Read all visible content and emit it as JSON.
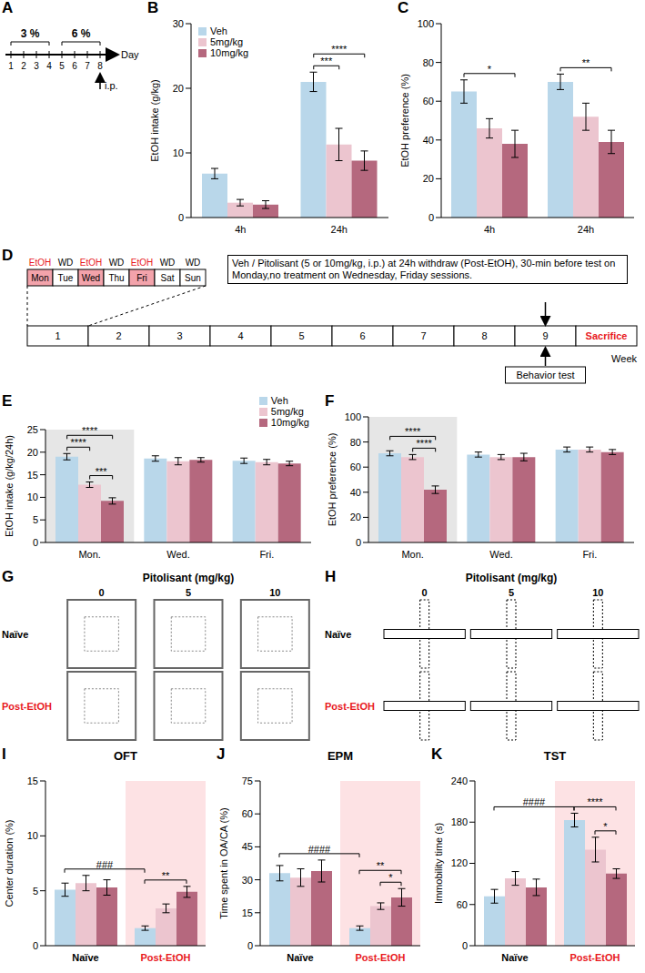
{
  "panel_A": {
    "panel": "A",
    "segments": [
      {
        "label": "3 %",
        "from": 1,
        "to": 4
      },
      {
        "label": "6 %",
        "from": 5,
        "to": 8
      }
    ],
    "days": [
      1,
      2,
      3,
      4,
      5,
      6,
      7,
      8
    ],
    "axis_label": "Day",
    "injection": {
      "day": 8,
      "label": "i.p."
    }
  },
  "panel_D": {
    "panel": "D",
    "week_days": [
      {
        "day": "Mon",
        "session": "EtOH",
        "color": "#f3a3ab"
      },
      {
        "day": "Tue",
        "session": "WD"
      },
      {
        "day": "Wed",
        "session": "EtOH",
        "color": "#f3a3ab"
      },
      {
        "day": "Thu",
        "session": "WD"
      },
      {
        "day": "Fri",
        "session": "EtOH",
        "color": "#f3a3ab"
      },
      {
        "day": "Sat",
        "session": "WD"
      },
      {
        "day": "Sun",
        "session": "WD"
      }
    ],
    "weeks": [
      1,
      2,
      3,
      4,
      5,
      6,
      7,
      8,
      9
    ],
    "final": {
      "label": "Sacrifice",
      "color": "#e8191e"
    },
    "note": "Veh / Pitolisant (5 or 10mg/kg, i.p.) at 24h withdraw (Post-EtOH), 30-min before test on Monday,no treatment on Wednesday, Friday sessions.",
    "behavior": "Behavior test",
    "axis_label": "Week"
  },
  "panel_G": {
    "panel": "G",
    "title": "Pitolisant (mg/kg)",
    "doses": [
      0,
      5,
      10
    ],
    "rows": [
      "Naïve",
      "Post-EtOH"
    ],
    "colors": [
      "#000000",
      "#e8191e"
    ]
  },
  "panel_H": {
    "panel": "H",
    "title": "Pitolisant (mg/kg)",
    "doses": [
      0,
      5,
      10
    ],
    "rows": [
      "Naïve",
      "Post-EtOH"
    ],
    "colors": [
      "#000000",
      "#e8191e"
    ]
  },
  "chart_data": [
    {
      "panel": "B",
      "type": "bar",
      "y_label": "EtOH intake (g/kg)",
      "categories": [
        "4h",
        "24h"
      ],
      "ylim": [
        0,
        30
      ],
      "yticks": [
        0,
        10,
        20,
        30
      ],
      "legend": "top-left",
      "series": [
        {
          "name": "Veh",
          "color": "#b9d7ea",
          "values": [
            6.8,
            21.0
          ],
          "errors": [
            0.8,
            1.5
          ]
        },
        {
          "name": "5mg/kg",
          "color": "#ecc5cf",
          "values": [
            2.3,
            11.3
          ],
          "errors": [
            0.5,
            2.5
          ]
        },
        {
          "name": "10mg/kg",
          "color": "#b5687e",
          "values": [
            2.0,
            8.8
          ],
          "errors": [
            0.6,
            1.5
          ]
        }
      ],
      "annotations": [
        {
          "from": {
            "category": "24h",
            "series": 0
          },
          "to": {
            "category": "24h",
            "series": 1
          },
          "label": "***"
        },
        {
          "from": {
            "category": "24h",
            "series": 0
          },
          "to": {
            "category": "24h",
            "series": 2
          },
          "label": "****"
        }
      ]
    },
    {
      "panel": "C",
      "type": "bar",
      "y_label": "EtOH preference (%)",
      "categories": [
        "4h",
        "24h"
      ],
      "ylim": [
        0,
        100
      ],
      "yticks": [
        0,
        20,
        40,
        60,
        80,
        100
      ],
      "series": [
        {
          "color": "#b9d7ea",
          "values": [
            65,
            70
          ],
          "errors": [
            6,
            4
          ]
        },
        {
          "color": "#ecc5cf",
          "values": [
            46,
            52
          ],
          "errors": [
            5,
            7
          ]
        },
        {
          "color": "#b5687e",
          "values": [
            38,
            39
          ],
          "errors": [
            7,
            6
          ]
        }
      ],
      "annotations": [
        {
          "from": {
            "category": "4h",
            "series": 0
          },
          "to": {
            "category": "4h",
            "series": 2
          },
          "label": "*"
        },
        {
          "from": {
            "category": "24h",
            "series": 0
          },
          "to": {
            "category": "24h",
            "series": 2
          },
          "label": "**"
        }
      ]
    },
    {
      "panel": "E",
      "type": "bar",
      "y_label": "EtOH intake (g/kg/24h)",
      "categories": [
        "Mon.",
        "Wed.",
        "Fri."
      ],
      "ylim": [
        0,
        25
      ],
      "yticks": [
        0,
        5,
        10,
        15,
        20,
        25
      ],
      "legend": "top-right",
      "series": [
        {
          "name": "Veh",
          "color": "#b9d7ea",
          "values": [
            19.0,
            18.6,
            18.1
          ],
          "errors": [
            0.7,
            0.6,
            0.6
          ]
        },
        {
          "name": "5mg/kg",
          "color": "#ecc5cf",
          "values": [
            12.8,
            18.0,
            17.8
          ],
          "errors": [
            0.6,
            0.8,
            0.6
          ]
        },
        {
          "name": "10mg/kg",
          "color": "#b5687e",
          "values": [
            9.2,
            18.3,
            17.5
          ],
          "errors": [
            0.7,
            0.5,
            0.5
          ]
        }
      ],
      "annotations": [
        {
          "from": {
            "category": "Mon.",
            "series": 0
          },
          "to": {
            "category": "Mon.",
            "series": 1
          },
          "label": "****"
        },
        {
          "from": {
            "category": "Mon.",
            "series": 1
          },
          "to": {
            "category": "Mon.",
            "series": 2
          },
          "label": "***"
        },
        {
          "from": {
            "category": "Mon.",
            "series": 0
          },
          "to": {
            "category": "Mon.",
            "series": 2
          },
          "label": "****"
        }
      ]
    },
    {
      "panel": "F",
      "type": "bar",
      "y_label": "EtOH preference (%)",
      "categories": [
        "Mon.",
        "Wed.",
        "Fri."
      ],
      "ylim": [
        0,
        100
      ],
      "yticks": [
        0,
        20,
        40,
        60,
        80,
        100
      ],
      "series": [
        {
          "color": "#b9d7ea",
          "values": [
            71,
            70,
            74
          ],
          "errors": [
            2,
            2,
            2
          ]
        },
        {
          "color": "#ecc5cf",
          "values": [
            68,
            68,
            74
          ],
          "errors": [
            2,
            2,
            2
          ]
        },
        {
          "color": "#b5687e",
          "values": [
            42,
            68,
            72
          ],
          "errors": [
            3,
            3,
            2
          ]
        }
      ],
      "annotations": [
        {
          "from": {
            "category": "Mon.",
            "series": 1
          },
          "to": {
            "category": "Mon.",
            "series": 2
          },
          "label": "****"
        },
        {
          "from": {
            "category": "Mon.",
            "series": 0
          },
          "to": {
            "category": "Mon.",
            "series": 2
          },
          "label": "****"
        }
      ]
    },
    {
      "panel": "I",
      "type": "bar",
      "title": "OFT",
      "y_label": "Center duration (%)",
      "categories": [
        "Naïve",
        "Post-EtOH"
      ],
      "ylim": [
        0,
        15
      ],
      "yticks": [
        0,
        5,
        10,
        15
      ],
      "series": [
        {
          "color": "#b9d7ea",
          "values": [
            5.1,
            1.6
          ],
          "errors": [
            0.6,
            0.2
          ]
        },
        {
          "color": "#ecc5cf",
          "values": [
            5.7,
            3.4
          ],
          "errors": [
            0.7,
            0.4
          ]
        },
        {
          "color": "#b5687e",
          "values": [
            5.3,
            4.9
          ],
          "errors": [
            0.7,
            0.5
          ]
        }
      ],
      "annotations": [
        {
          "from": {
            "category": "Naïve",
            "series": 0
          },
          "to": {
            "category": "Post-EtOH",
            "series": 0
          },
          "label": "###"
        },
        {
          "from": {
            "category": "Post-EtOH",
            "series": 0
          },
          "to": {
            "category": "Post-EtOH",
            "series": 2
          },
          "label": "**"
        }
      ]
    },
    {
      "panel": "J",
      "type": "bar",
      "title": "EPM",
      "y_label": "Time spent in OA/CA (%)",
      "categories": [
        "Naïve",
        "Post-EtOH"
      ],
      "ylim": [
        0,
        75
      ],
      "yticks": [
        0,
        15,
        30,
        45,
        60,
        75
      ],
      "series": [
        {
          "color": "#b9d7ea",
          "values": [
            33,
            8
          ],
          "errors": [
            3.5,
            1
          ]
        },
        {
          "color": "#ecc5cf",
          "values": [
            31,
            18
          ],
          "errors": [
            4,
            1.5
          ]
        },
        {
          "color": "#b5687e",
          "values": [
            34,
            22
          ],
          "errors": [
            5,
            4
          ]
        }
      ],
      "annotations": [
        {
          "from": {
            "category": "Naïve",
            "series": 0
          },
          "to": {
            "category": "Post-EtOH",
            "series": 0
          },
          "label": "####"
        },
        {
          "from": {
            "category": "Post-EtOH",
            "series": 1
          },
          "to": {
            "category": "Post-EtOH",
            "series": 2
          },
          "label": "*"
        },
        {
          "from": {
            "category": "Post-EtOH",
            "series": 0
          },
          "to": {
            "category": "Post-EtOH",
            "series": 2
          },
          "label": "**"
        }
      ]
    },
    {
      "panel": "K",
      "type": "bar",
      "title": "TST",
      "y_label": "Immobility time (s)",
      "categories": [
        "Naïve",
        "Post-EtOH"
      ],
      "ylim": [
        0,
        240
      ],
      "yticks": [
        0,
        60,
        120,
        180,
        240
      ],
      "series": [
        {
          "color": "#b9d7ea",
          "values": [
            72,
            183
          ],
          "errors": [
            10,
            10
          ]
        },
        {
          "color": "#ecc5cf",
          "values": [
            98,
            140
          ],
          "errors": [
            10,
            18
          ]
        },
        {
          "color": "#b5687e",
          "values": [
            85,
            105
          ],
          "errors": [
            12,
            7
          ]
        }
      ],
      "annotations": [
        {
          "from": {
            "category": "Naïve",
            "series": 0
          },
          "to": {
            "category": "Post-EtOH",
            "series": 0
          },
          "label": "####"
        },
        {
          "from": {
            "category": "Post-EtOH",
            "series": 1
          },
          "to": {
            "category": "Post-EtOH",
            "series": 2
          },
          "label": "*"
        },
        {
          "from": {
            "category": "Post-EtOH",
            "series": 0
          },
          "to": {
            "category": "Post-EtOH",
            "series": 2
          },
          "label": "****"
        }
      ]
    }
  ]
}
